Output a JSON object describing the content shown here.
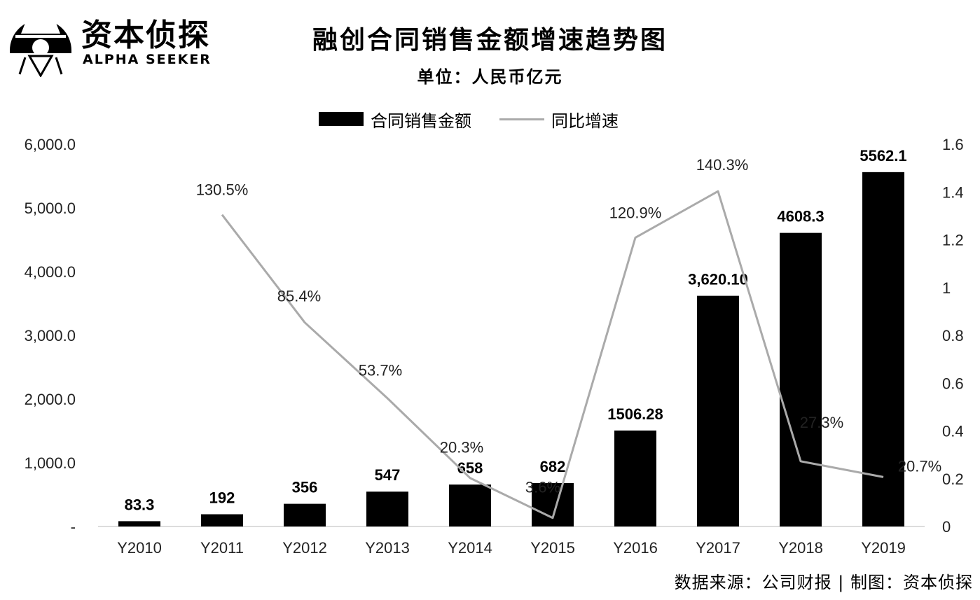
{
  "brand": {
    "name": "资本侦探",
    "sub": "ALPHA SEEKER"
  },
  "source_text": "数据来源：公司财报 | 制图：资本侦探",
  "colors": {
    "bar": "#000000",
    "line": "#aaaaaa"
  },
  "chart_data": {
    "type": "bar",
    "title": "融创合同销售金额增速趋势图",
    "subtitle": "单位：人民币亿元",
    "legend_position": "top",
    "categories": [
      "Y2010",
      "Y2011",
      "Y2012",
      "Y2013",
      "Y2014",
      "Y2015",
      "Y2016",
      "Y2017",
      "Y2018",
      "Y2019"
    ],
    "series": [
      {
        "name": "合同销售金额",
        "type": "bar",
        "axis": "left",
        "values": [
          83.3,
          192,
          356,
          547,
          658,
          682,
          1506.28,
          3620.1,
          4608.3,
          5562.1
        ],
        "labels": [
          "83.3",
          "192",
          "356",
          "547",
          "658",
          "682",
          "1506.28",
          "3,620.10",
          "4608.3",
          "5562.1"
        ]
      },
      {
        "name": "同比增速",
        "type": "line",
        "axis": "right",
        "values": [
          null,
          1.305,
          0.854,
          0.537,
          0.203,
          0.036,
          1.209,
          1.403,
          0.273,
          0.207
        ],
        "labels": [
          "",
          "130.5%",
          "85.4%",
          "53.7%",
          "20.3%",
          "3.6%",
          "120.9%",
          "140.3%",
          "27.3%",
          "20.7%"
        ]
      }
    ],
    "y_left": {
      "range": [
        0,
        6000
      ],
      "ticks": [
        0,
        1000,
        2000,
        3000,
        4000,
        5000,
        6000
      ],
      "tick_labels": [
        "-",
        "1,000.0",
        "2,000.0",
        "3,000.0",
        "4,000.0",
        "5,000.0",
        "6,000.0"
      ]
    },
    "y_right": {
      "range": [
        0,
        1.6
      ],
      "ticks": [
        0,
        0.2,
        0.4,
        0.6,
        0.8,
        1.0,
        1.2,
        1.4,
        1.6
      ],
      "tick_labels": [
        "0",
        "0.2",
        "0.4",
        "0.6",
        "0.8",
        "1",
        "1.2",
        "1.4",
        "1.6"
      ]
    },
    "grid": false
  }
}
